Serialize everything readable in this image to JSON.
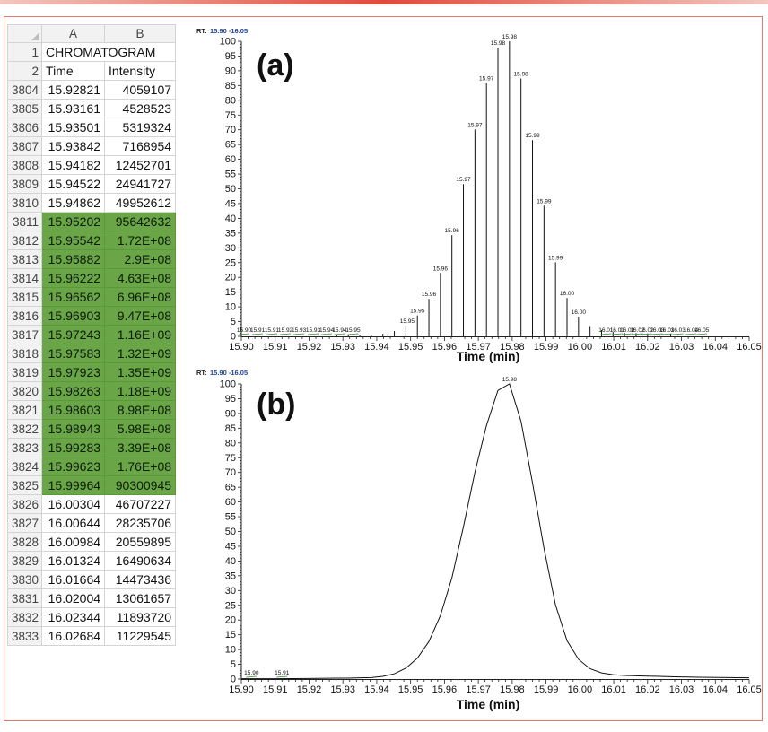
{
  "sheet": {
    "column_headers": [
      "A",
      "B"
    ],
    "rows": [
      {
        "row": "1",
        "a": "CHROMATOGRAM",
        "b": "",
        "hl": false,
        "merged": true
      },
      {
        "row": "2",
        "a": "Time",
        "b": "Intensity",
        "hl": false
      },
      {
        "row": "3804",
        "a": "15.92821",
        "b": "4059107",
        "hl": false
      },
      {
        "row": "3805",
        "a": "15.93161",
        "b": "4528523",
        "hl": false
      },
      {
        "row": "3806",
        "a": "15.93501",
        "b": "5319324",
        "hl": false
      },
      {
        "row": "3807",
        "a": "15.93842",
        "b": "7168954",
        "hl": false
      },
      {
        "row": "3808",
        "a": "15.94182",
        "b": "12452701",
        "hl": false
      },
      {
        "row": "3809",
        "a": "15.94522",
        "b": "24941727",
        "hl": false
      },
      {
        "row": "3810",
        "a": "15.94862",
        "b": "49952612",
        "hl": false
      },
      {
        "row": "3811",
        "a": "15.95202",
        "b": "95642632",
        "hl": true
      },
      {
        "row": "3812",
        "a": "15.95542",
        "b": "1.72E+08",
        "hl": true
      },
      {
        "row": "3813",
        "a": "15.95882",
        "b": "2.9E+08",
        "hl": true
      },
      {
        "row": "3814",
        "a": "15.96222",
        "b": "4.63E+08",
        "hl": true
      },
      {
        "row": "3815",
        "a": "15.96562",
        "b": "6.96E+08",
        "hl": true
      },
      {
        "row": "3816",
        "a": "15.96903",
        "b": "9.47E+08",
        "hl": true
      },
      {
        "row": "3817",
        "a": "15.97243",
        "b": "1.16E+09",
        "hl": true
      },
      {
        "row": "3818",
        "a": "15.97583",
        "b": "1.32E+09",
        "hl": true
      },
      {
        "row": "3819",
        "a": "15.97923",
        "b": "1.35E+09",
        "hl": true
      },
      {
        "row": "3820",
        "a": "15.98263",
        "b": "1.18E+09",
        "hl": true
      },
      {
        "row": "3821",
        "a": "15.98603",
        "b": "8.98E+08",
        "hl": true
      },
      {
        "row": "3822",
        "a": "15.98943",
        "b": "5.98E+08",
        "hl": true
      },
      {
        "row": "3823",
        "a": "15.99283",
        "b": "3.39E+08",
        "hl": true
      },
      {
        "row": "3824",
        "a": "15.99623",
        "b": "1.76E+08",
        "hl": true
      },
      {
        "row": "3825",
        "a": "15.99964",
        "b": "90300945",
        "hl": true
      },
      {
        "row": "3826",
        "a": "16.00304",
        "b": "46707227",
        "hl": false
      },
      {
        "row": "3827",
        "a": "16.00644",
        "b": "28235706",
        "hl": false
      },
      {
        "row": "3828",
        "a": "16.00984",
        "b": "20559895",
        "hl": false
      },
      {
        "row": "3829",
        "a": "16.01324",
        "b": "16490634",
        "hl": false
      },
      {
        "row": "3830",
        "a": "16.01664",
        "b": "14473436",
        "hl": false
      },
      {
        "row": "3831",
        "a": "16.02004",
        "b": "13061657",
        "hl": false
      },
      {
        "row": "3832",
        "a": "16.02344",
        "b": "11893720",
        "hl": false
      },
      {
        "row": "3833",
        "a": "16.02684",
        "b": "11229545",
        "hl": false
      }
    ]
  },
  "colors": {
    "highlight": "#6aa648",
    "rt_label": "#1f3f9f",
    "minor_peak": "#2e8b2e",
    "frame": "#e07a6e"
  },
  "chart_data": [
    {
      "type": "bar",
      "panel_label": "(a)",
      "rt_prefix": "RT:",
      "rt_range": "15.90 -16.05",
      "xlabel": "Time (min)",
      "ylabel": "",
      "xlim": [
        15.9,
        16.05
      ],
      "ylim": [
        0,
        100
      ],
      "x_ticks": [
        "15.90",
        "15.91",
        "15.92",
        "15.93",
        "15.94",
        "15.95",
        "15.96",
        "15.97",
        "15.98",
        "15.99",
        "16.00",
        "16.01",
        "16.02",
        "16.03",
        "16.04",
        "16.05"
      ],
      "y_ticks": [
        "0",
        "5",
        "10",
        "15",
        "20",
        "25",
        "30",
        "35",
        "40",
        "45",
        "50",
        "55",
        "60",
        "65",
        "70",
        "75",
        "80",
        "85",
        "90",
        "95",
        "100"
      ],
      "bars": [
        {
          "x": 15.9282,
          "y": 0.3
        },
        {
          "x": 15.9316,
          "y": 0.3
        },
        {
          "x": 15.935,
          "y": 0.4
        },
        {
          "x": 15.9384,
          "y": 0.5
        },
        {
          "x": 15.9418,
          "y": 0.9
        },
        {
          "x": 15.9452,
          "y": 1.8
        },
        {
          "x": 15.9486,
          "y": 3.7
        },
        {
          "x": 15.952,
          "y": 7.1
        },
        {
          "x": 15.9554,
          "y": 12.7
        },
        {
          "x": 15.9588,
          "y": 21.5
        },
        {
          "x": 15.9622,
          "y": 34.3
        },
        {
          "x": 15.9656,
          "y": 51.6
        },
        {
          "x": 15.969,
          "y": 70.1
        },
        {
          "x": 15.9724,
          "y": 85.9
        },
        {
          "x": 15.9758,
          "y": 97.8
        },
        {
          "x": 15.9792,
          "y": 100
        },
        {
          "x": 15.9826,
          "y": 87.4
        },
        {
          "x": 15.986,
          "y": 66.5
        },
        {
          "x": 15.9894,
          "y": 44.3
        },
        {
          "x": 15.9928,
          "y": 25.1
        },
        {
          "x": 15.9962,
          "y": 13.0
        },
        {
          "x": 15.9996,
          "y": 6.7
        },
        {
          "x": 16.003,
          "y": 3.5
        },
        {
          "x": 16.0064,
          "y": 2.1
        },
        {
          "x": 16.0098,
          "y": 1.5
        },
        {
          "x": 16.0132,
          "y": 1.2
        },
        {
          "x": 16.0166,
          "y": 1.1
        },
        {
          "x": 16.02,
          "y": 1.0
        },
        {
          "x": 16.0234,
          "y": 0.9
        },
        {
          "x": 16.0268,
          "y": 0.8
        }
      ],
      "peak_labels": [
        {
          "x": 15.949,
          "y": 3.7,
          "text": "15.95"
        },
        {
          "x": 15.952,
          "y": 7.1,
          "text": "15.95"
        },
        {
          "x": 15.9554,
          "y": 12.7,
          "text": "15.96"
        },
        {
          "x": 15.9588,
          "y": 21.5,
          "text": "15.96"
        },
        {
          "x": 15.9622,
          "y": 34.3,
          "text": "15.96"
        },
        {
          "x": 15.9656,
          "y": 51.6,
          "text": "15.97"
        },
        {
          "x": 15.969,
          "y": 70.1,
          "text": "15.97"
        },
        {
          "x": 15.9724,
          "y": 85.9,
          "text": "15.97"
        },
        {
          "x": 15.9758,
          "y": 97.8,
          "text": "15.98"
        },
        {
          "x": 15.9792,
          "y": 100,
          "text": "15.98"
        },
        {
          "x": 15.9826,
          "y": 87.4,
          "text": "15.98"
        },
        {
          "x": 15.986,
          "y": 66.5,
          "text": "15.99"
        },
        {
          "x": 15.9894,
          "y": 44.3,
          "text": "15.99"
        },
        {
          "x": 15.9928,
          "y": 25.1,
          "text": "15.99"
        },
        {
          "x": 15.9962,
          "y": 13.0,
          "text": "16.00"
        },
        {
          "x": 15.9996,
          "y": 6.7,
          "text": "16.00"
        }
      ],
      "baseline_labels": [
        {
          "x": 15.9008,
          "text": "15.90"
        },
        {
          "x": 15.9048,
          "text": "15.91"
        },
        {
          "x": 15.909,
          "text": "15.91"
        },
        {
          "x": 15.913,
          "text": "15.92"
        },
        {
          "x": 15.917,
          "text": "15.93"
        },
        {
          "x": 15.9212,
          "text": "15.93"
        },
        {
          "x": 15.9252,
          "text": "15.94"
        },
        {
          "x": 15.929,
          "text": "15.94"
        },
        {
          "x": 15.933,
          "text": "15.95"
        },
        {
          "x": 16.0077,
          "text": "16.01"
        },
        {
          "x": 16.011,
          "text": "16.01"
        },
        {
          "x": 16.014,
          "text": "16.02"
        },
        {
          "x": 16.017,
          "text": "16.02"
        },
        {
          "x": 16.0197,
          "text": "16.02"
        },
        {
          "x": 16.0228,
          "text": "16.03"
        },
        {
          "x": 16.0257,
          "text": "16.03"
        },
        {
          "x": 16.029,
          "text": "16.03"
        },
        {
          "x": 16.0328,
          "text": "16.04"
        },
        {
          "x": 16.036,
          "text": "16.05"
        }
      ],
      "grid": false
    },
    {
      "type": "line",
      "panel_label": "(b)",
      "rt_prefix": "RT:",
      "rt_range": "15.90 -16.05",
      "xlabel": "Time (min)",
      "ylabel": "",
      "xlim": [
        15.9,
        16.05
      ],
      "ylim": [
        0,
        100
      ],
      "x_ticks": [
        "15.90",
        "15.91",
        "15.92",
        "15.93",
        "15.94",
        "15.95",
        "15.96",
        "15.97",
        "15.98",
        "15.99",
        "16.00",
        "16.01",
        "16.02",
        "16.03",
        "16.04",
        "16.05"
      ],
      "y_ticks": [
        "0",
        "5",
        "10",
        "15",
        "20",
        "25",
        "30",
        "35",
        "40",
        "45",
        "50",
        "55",
        "60",
        "65",
        "70",
        "75",
        "80",
        "85",
        "90",
        "95",
        "100"
      ],
      "x": [
        15.9,
        15.91,
        15.92,
        15.9282,
        15.9316,
        15.935,
        15.9384,
        15.9418,
        15.9452,
        15.9486,
        15.952,
        15.9554,
        15.9588,
        15.9622,
        15.9656,
        15.969,
        15.9724,
        15.9758,
        15.9792,
        15.9826,
        15.986,
        15.9894,
        15.9928,
        15.9962,
        15.9996,
        16.003,
        16.0064,
        16.0098,
        16.0132,
        16.0166,
        16.02,
        16.0234,
        16.0268,
        16.035,
        16.05
      ],
      "y": [
        0.1,
        0.1,
        0.2,
        0.3,
        0.3,
        0.4,
        0.5,
        0.9,
        1.8,
        3.7,
        7.1,
        12.7,
        21.5,
        34.3,
        51.6,
        70.1,
        85.9,
        97.8,
        100,
        87.4,
        66.5,
        44.3,
        25.1,
        13.0,
        6.7,
        3.5,
        2.1,
        1.5,
        1.2,
        1.1,
        1.0,
        0.9,
        0.8,
        0.6,
        0.4
      ],
      "peak_labels": [
        {
          "x": 15.9792,
          "y": 100,
          "text": "15.98"
        }
      ],
      "baseline_labels": [
        {
          "x": 15.903,
          "text": "15.90"
        },
        {
          "x": 15.912,
          "text": "15.91"
        }
      ],
      "grid": false
    }
  ]
}
